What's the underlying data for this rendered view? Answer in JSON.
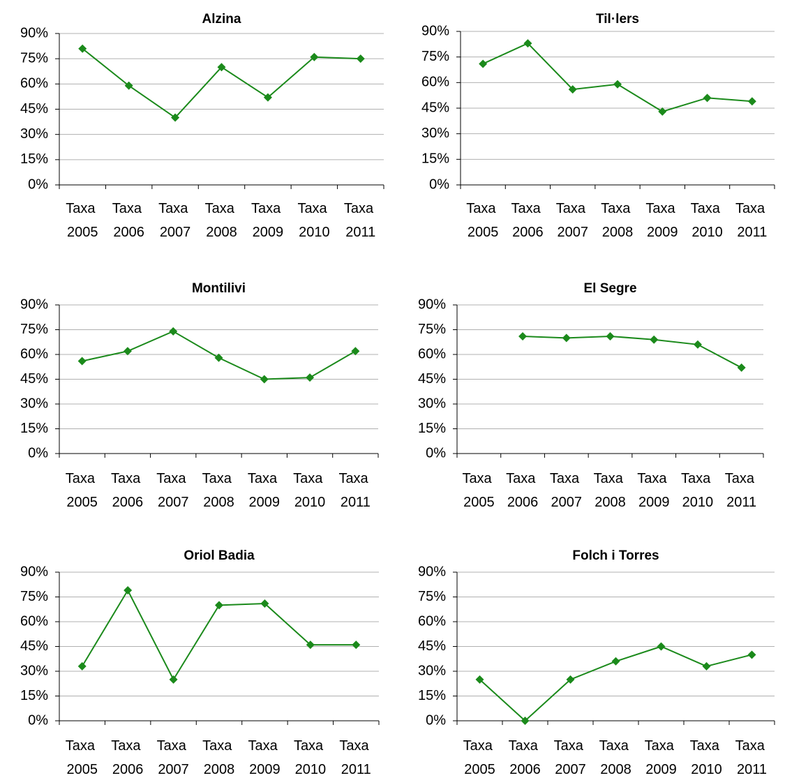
{
  "chart_data": [
    {
      "type": "line",
      "title": "Alzina",
      "categories": [
        "Taxa 2005",
        "Taxa 2006",
        "Taxa 2007",
        "Taxa 2008",
        "Taxa 2009",
        "Taxa 2010",
        "Taxa 2011"
      ],
      "values": [
        81,
        59,
        40,
        70,
        52,
        76,
        75
      ],
      "color": "#1b8a1b",
      "ylim": [
        0,
        90
      ],
      "yticks": [
        {
          "value": 0,
          "label": "0%"
        },
        {
          "value": 15,
          "label": "15%"
        },
        {
          "value": 30,
          "label": "30%"
        },
        {
          "value": 45,
          "label": "45%"
        },
        {
          "value": 60,
          "label": "60%"
        },
        {
          "value": 75,
          "label": "75%"
        },
        {
          "value": 90,
          "label": "90%"
        }
      ],
      "grid": true
    },
    {
      "type": "line",
      "title": "Til·lers",
      "categories": [
        "Taxa 2005",
        "Taxa 2006",
        "Taxa 2007",
        "Taxa 2008",
        "Taxa 2009",
        "Taxa 2010",
        "Taxa 2011"
      ],
      "values": [
        71,
        83,
        56,
        59,
        43,
        51,
        49
      ],
      "color": "#1b8a1b",
      "ylim": [
        0,
        90
      ],
      "yticks": [
        {
          "value": 0,
          "label": "0%"
        },
        {
          "value": 15,
          "label": "15%"
        },
        {
          "value": 30,
          "label": "30%"
        },
        {
          "value": 45,
          "label": "45%"
        },
        {
          "value": 60,
          "label": "60%"
        },
        {
          "value": 75,
          "label": "75%"
        },
        {
          "value": 90,
          "label": "90%"
        }
      ],
      "grid": true
    },
    {
      "type": "line",
      "title": "Montilivi",
      "categories": [
        "Taxa 2005",
        "Taxa 2006",
        "Taxa 2007",
        "Taxa 2008",
        "Taxa 2009",
        "Taxa 2010",
        "Taxa 2011"
      ],
      "values": [
        56,
        62,
        74,
        58,
        45,
        46,
        62
      ],
      "color": "#1b8a1b",
      "ylim": [
        0,
        90
      ],
      "yticks": [
        {
          "value": 0,
          "label": "0%"
        },
        {
          "value": 15,
          "label": "15%"
        },
        {
          "value": 30,
          "label": "30%"
        },
        {
          "value": 45,
          "label": "45%"
        },
        {
          "value": 60,
          "label": "60%"
        },
        {
          "value": 75,
          "label": "75%"
        },
        {
          "value": 90,
          "label": "90%"
        }
      ],
      "grid": true
    },
    {
      "type": "line",
      "title": "El Segre",
      "categories": [
        "Taxa 2005",
        "Taxa 2006",
        "Taxa 2007",
        "Taxa 2008",
        "Taxa 2009",
        "Taxa 2010",
        "Taxa 2011"
      ],
      "values": [
        null,
        71,
        70,
        71,
        69,
        66,
        52
      ],
      "color": "#1b8a1b",
      "ylim": [
        0,
        90
      ],
      "yticks": [
        {
          "value": 0,
          "label": "0%"
        },
        {
          "value": 15,
          "label": "15%"
        },
        {
          "value": 30,
          "label": "30%"
        },
        {
          "value": 45,
          "label": "45%"
        },
        {
          "value": 60,
          "label": "60%"
        },
        {
          "value": 75,
          "label": "75%"
        },
        {
          "value": 90,
          "label": "90%"
        }
      ],
      "grid": true
    },
    {
      "type": "line",
      "title": "Oriol Badia",
      "categories": [
        "Taxa 2005",
        "Taxa 2006",
        "Taxa 2007",
        "Taxa 2008",
        "Taxa 2009",
        "Taxa 2010",
        "Taxa 2011"
      ],
      "values": [
        33,
        79,
        25,
        70,
        71,
        46,
        46
      ],
      "color": "#1b8a1b",
      "ylim": [
        0,
        90
      ],
      "yticks": [
        {
          "value": 0,
          "label": "0%"
        },
        {
          "value": 15,
          "label": "15%"
        },
        {
          "value": 30,
          "label": "30%"
        },
        {
          "value": 45,
          "label": "45%"
        },
        {
          "value": 60,
          "label": "60%"
        },
        {
          "value": 75,
          "label": "75%"
        },
        {
          "value": 90,
          "label": "90%"
        }
      ],
      "grid": true
    },
    {
      "type": "line",
      "title": "Folch i Torres",
      "categories": [
        "Taxa 2005",
        "Taxa 2006",
        "Taxa 2007",
        "Taxa 2008",
        "Taxa 2009",
        "Taxa 2010",
        "Taxa 2011"
      ],
      "values": [
        25,
        0,
        25,
        36,
        45,
        33,
        40
      ],
      "color": "#1b8a1b",
      "ylim": [
        0,
        90
      ],
      "yticks": [
        {
          "value": 0,
          "label": "0%"
        },
        {
          "value": 15,
          "label": "15%"
        },
        {
          "value": 30,
          "label": "30%"
        },
        {
          "value": 45,
          "label": "45%"
        },
        {
          "value": 60,
          "label": "60%"
        },
        {
          "value": 75,
          "label": "75%"
        },
        {
          "value": 90,
          "label": "90%"
        }
      ],
      "grid": true
    }
  ]
}
